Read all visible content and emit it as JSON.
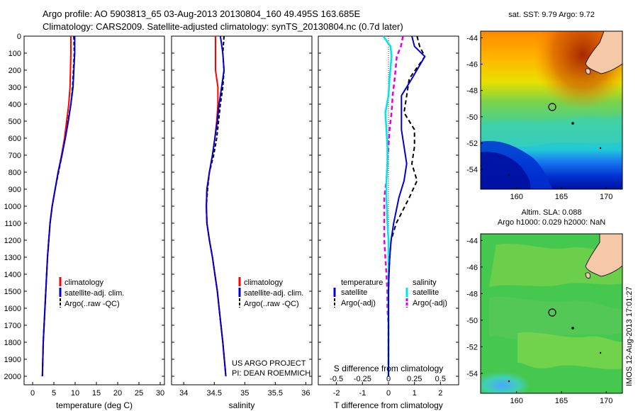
{
  "header": {
    "line1": "Argo profile: AO 5903813_65 03-Aug-2013 20130804_160 49.495S 163.685E",
    "line2": "Climatology: CARS2009. Satellite-adjusted climatology: synTS_20130804.nc (0.7d later)"
  },
  "colors": {
    "climatology": "#ff0000",
    "satellite": "#0000cc",
    "argo": "#000000",
    "salinity_satellite": "#00e5e5",
    "salinity_argo": "#e000e0",
    "land": "#f5c8a8"
  },
  "panel_temperature": {
    "xlabel": "temperature (deg C)",
    "xticks": [
      "0",
      "5",
      "10",
      "15",
      "20",
      "25",
      "30"
    ],
    "yticks": [
      "0",
      "100",
      "200",
      "300",
      "400",
      "500",
      "600",
      "700",
      "800",
      "900",
      "1000",
      "1100",
      "1200",
      "1300",
      "1400",
      "1500",
      "1600",
      "1700",
      "1800",
      "1900",
      "2000"
    ],
    "legend": [
      "climatology",
      "satellite-adj. clim.",
      "Argo(..raw -QC)"
    ]
  },
  "panel_salinity": {
    "xlabel": "salinity",
    "xticks": [
      "34",
      "34.5",
      "35",
      "35.5",
      "36"
    ],
    "legend": [
      "climatology",
      "satellite-adj. clim.",
      "Argo(..raw -QC)"
    ],
    "credit1": "US ARGO PROJECT",
    "credit2": "PI: DEAN ROEMMICH"
  },
  "panel_difference": {
    "title_top": "S difference from climatology",
    "xlabel": "T difference from climatology",
    "top_ticks": [
      "-0.5",
      "-0.25",
      "0",
      "0.25",
      "0.5"
    ],
    "bottom_ticks": [
      "-2",
      "-1",
      "0",
      "1",
      "2"
    ],
    "legend_temp_head": "temperature",
    "legend_sal_head": "salinity",
    "legend_items": [
      "satellite",
      "Argo(-adj)",
      "satellite",
      "Argo(-adj)"
    ]
  },
  "map_sst": {
    "title": "sat. SST: 9.79 Argo: 9.72",
    "yticks": [
      "-44",
      "-46",
      "-48",
      "-50",
      "-52",
      "-54"
    ],
    "xticks": [
      "160",
      "165",
      "170"
    ]
  },
  "map_sla": {
    "title1": "Altim. SLA: 0.088",
    "title2": "Argo h1000: 0.029 h2000: NaN",
    "yticks": [
      "-44",
      "-46",
      "-48",
      "-50",
      "-52",
      "-54"
    ],
    "xticks": [
      "160",
      "165",
      "170"
    ]
  },
  "stamp": "IMOS 12-Aug-2013 17:01:27",
  "chart_data": [
    {
      "type": "line",
      "title": "",
      "xlabel": "temperature (deg C)",
      "ylabel": "",
      "xlim": [
        -2,
        31
      ],
      "ylim": [
        2050,
        0
      ],
      "series": [
        {
          "name": "climatology",
          "x": [
            9.0,
            9.0,
            8.9,
            8.8,
            8.5,
            8.0,
            7.5,
            6.8,
            6.0,
            5.3,
            4.6,
            4.1,
            3.8,
            3.5,
            3.3,
            3.1,
            2.9,
            2.7,
            2.5,
            2.3
          ],
          "y": [
            0,
            100,
            200,
            300,
            400,
            500,
            600,
            700,
            800,
            900,
            1000,
            1100,
            1200,
            1300,
            1400,
            1500,
            1600,
            1700,
            1800,
            2000
          ]
        },
        {
          "name": "satellite-adj. clim.",
          "x": [
            9.9,
            9.9,
            9.7,
            9.5,
            9.0,
            8.4,
            7.7,
            6.9,
            6.0,
            5.3,
            4.6,
            4.1,
            3.8,
            3.5,
            3.3,
            3.1,
            2.9,
            2.7,
            2.5,
            2.3
          ],
          "y": [
            0,
            100,
            200,
            300,
            400,
            500,
            600,
            700,
            800,
            900,
            1000,
            1100,
            1200,
            1300,
            1400,
            1500,
            1600,
            1700,
            1800,
            2000
          ]
        },
        {
          "name": "Argo(..raw -QC)",
          "x": [
            9.7,
            9.8,
            9.6,
            9.4,
            9.0,
            8.3,
            7.6,
            6.9,
            6.1,
            5.3,
            4.6,
            4.1,
            3.8,
            3.5,
            3.3,
            3.1,
            2.9,
            2.7,
            2.5,
            2.3
          ],
          "y": [
            0,
            100,
            200,
            300,
            400,
            500,
            600,
            700,
            800,
            900,
            1000,
            1100,
            1200,
            1300,
            1400,
            1500,
            1600,
            1700,
            1800,
            2000
          ]
        }
      ]
    },
    {
      "type": "line",
      "title": "",
      "xlabel": "salinity",
      "ylabel": "",
      "xlim": [
        33.8,
        36.1
      ],
      "ylim": [
        2050,
        0
      ],
      "series": [
        {
          "name": "climatology",
          "x": [
            34.52,
            34.52,
            34.52,
            34.56,
            34.56,
            34.54,
            34.51,
            34.47,
            34.42,
            34.38,
            34.37,
            34.38,
            34.42,
            34.47,
            34.51,
            34.55,
            34.58,
            34.61,
            34.64,
            34.69
          ],
          "y": [
            0,
            100,
            200,
            300,
            400,
            500,
            600,
            700,
            800,
            900,
            1000,
            1100,
            1200,
            1300,
            1400,
            1500,
            1600,
            1700,
            1800,
            2000
          ]
        },
        {
          "name": "satellite-adj. clim.",
          "x": [
            34.6,
            34.64,
            34.66,
            34.62,
            34.58,
            34.55,
            34.51,
            34.47,
            34.42,
            34.38,
            34.37,
            34.38,
            34.42,
            34.47,
            34.51,
            34.55,
            34.58,
            34.61,
            34.64,
            34.69
          ],
          "y": [
            0,
            100,
            200,
            300,
            400,
            500,
            600,
            700,
            800,
            900,
            1000,
            1100,
            1200,
            1300,
            1400,
            1500,
            1600,
            1700,
            1800,
            2000
          ]
        },
        {
          "name": "Argo(..raw -QC)",
          "x": [
            34.66,
            34.64,
            34.66,
            34.64,
            34.6,
            34.57,
            34.54,
            34.49,
            34.42,
            34.39,
            34.37,
            34.38,
            34.42,
            34.47,
            34.51,
            34.55,
            34.58,
            34.61,
            34.64,
            34.69
          ],
          "y": [
            0,
            100,
            200,
            300,
            400,
            500,
            600,
            700,
            800,
            900,
            1000,
            1100,
            1200,
            1300,
            1400,
            1500,
            1600,
            1700,
            1800,
            2000
          ]
        }
      ]
    },
    {
      "type": "line",
      "title": "S difference from climatology",
      "xlabel": "T difference from climatology",
      "ylabel": "",
      "xlim": [
        -2.7,
        2.7
      ],
      "ylim": [
        2050,
        0
      ],
      "series": [
        {
          "name": "satellite",
          "group": "temperature",
          "x": [
            0.9,
            1.0,
            1.4,
            0.9,
            0.5,
            0.5,
            0.5,
            0.6,
            0.7,
            0.6,
            0.4,
            0.2,
            0.1,
            0.05,
            0.02,
            0.0,
            0.0,
            0.0,
            0.0,
            0.0
          ],
          "y": [
            0,
            60,
            120,
            250,
            350,
            450,
            550,
            650,
            750,
            850,
            950,
            1100,
            1200,
            1300,
            1400,
            1500,
            1600,
            1700,
            1800,
            2000
          ]
        },
        {
          "name": "Argo(-adj)",
          "group": "temperature",
          "x": [
            1.1,
            1.2,
            1.4,
            0.8,
            0.7,
            0.6,
            1.0,
            1.0,
            0.9,
            1.1,
            0.8,
            0.3,
            0.1,
            0.05,
            0.02,
            0.0,
            0.0,
            0.0,
            0.0,
            0.0
          ],
          "y": [
            0,
            60,
            120,
            250,
            350,
            450,
            550,
            650,
            750,
            850,
            950,
            1100,
            1200,
            1300,
            1400,
            1500,
            1600,
            1700,
            1800,
            2000
          ]
        },
        {
          "name": "satellite",
          "group": "salinity",
          "x": [
            -0.05,
            0.02,
            0.03,
            0.01,
            0.0,
            -0.03,
            -0.02,
            -0.01,
            -0.01,
            -0.02,
            -0.02,
            -0.01,
            0.0,
            0.0,
            0.0,
            0.0,
            0.0,
            0.0,
            0.0,
            0.0
          ],
          "y": [
            0,
            60,
            120,
            250,
            350,
            450,
            550,
            650,
            750,
            850,
            950,
            1100,
            1200,
            1300,
            1400,
            1500,
            1600,
            1700,
            1800,
            2000
          ]
        },
        {
          "name": "Argo(-adj)",
          "group": "salinity",
          "x": [
            0.14,
            0.12,
            0.08,
            0.06,
            0.04,
            0.03,
            0.01,
            0.0,
            -0.01,
            -0.02,
            -0.04,
            -0.04,
            -0.04,
            -0.03,
            -0.02,
            -0.01,
            -0.01,
            0.0,
            0.0,
            0.0
          ],
          "y": [
            0,
            60,
            120,
            250,
            350,
            450,
            550,
            650,
            750,
            850,
            950,
            1100,
            1200,
            1300,
            1400,
            1500,
            1600,
            1700,
            1800,
            2000
          ]
        }
      ]
    }
  ]
}
